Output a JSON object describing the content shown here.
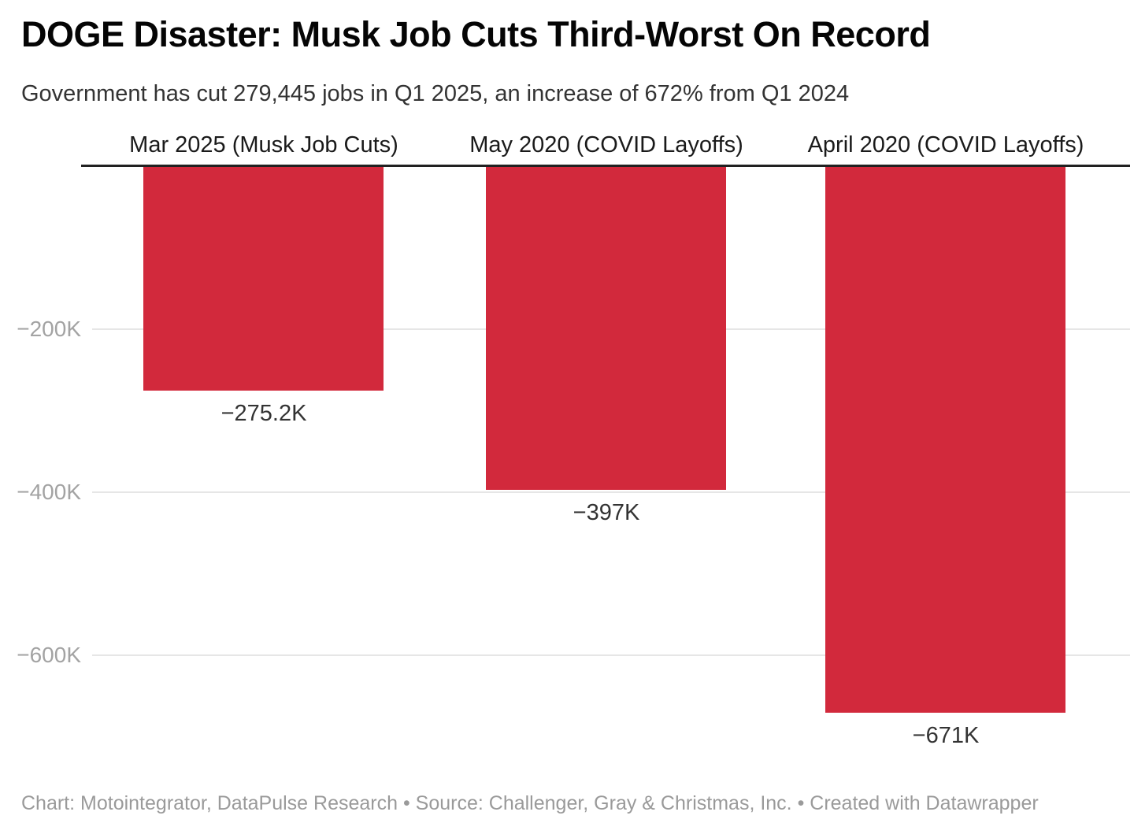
{
  "header": {
    "title": "DOGE Disaster: Musk Job Cuts Third-Worst On Record",
    "subtitle": "Government has cut 279,445 jobs in Q1 2025, an increase of 672% from Q1 2024"
  },
  "footer": {
    "text": "Chart: Motointegrator, DataPulse Research • Source: Challenger, Gray & Christmas, Inc. • Created with Datawrapper"
  },
  "chart_data": {
    "type": "bar",
    "orientation": "vertical-columns",
    "title": "DOGE Disaster: Musk Job Cuts Third-Worst On Record",
    "subtitle": "Government has cut 279,445 jobs in Q1 2025, an increase of 672% from Q1 2024",
    "categories": [
      "Mar 2025 (Musk Job Cuts)",
      "May 2020 (COVID Layoffs)",
      "April 2020 (COVID Layoffs)"
    ],
    "values": [
      -275200,
      -397000,
      -671000
    ],
    "bar_labels": [
      "−275.2K",
      "−397K",
      "−671K"
    ],
    "yticks": [
      {
        "value": -200000,
        "label": "−200K"
      },
      {
        "value": -400000,
        "label": "−400K"
      },
      {
        "value": -600000,
        "label": "−600K"
      }
    ],
    "ylim": [
      -700000,
      0
    ],
    "xlabel": "",
    "ylabel": "",
    "grid": "horizontal",
    "legend": "none",
    "baseline_at_top": true
  },
  "colors": {
    "bar": "#d2293c",
    "axis_line": "#212121",
    "gridline": "#e6e6e6",
    "tick_label": "#a3a3a3",
    "value_label": "#333333",
    "column_header": "#1a1a1a",
    "title": "#050505",
    "subtitle": "#333333",
    "footer": "#9a9a9a",
    "background": "#ffffff"
  }
}
